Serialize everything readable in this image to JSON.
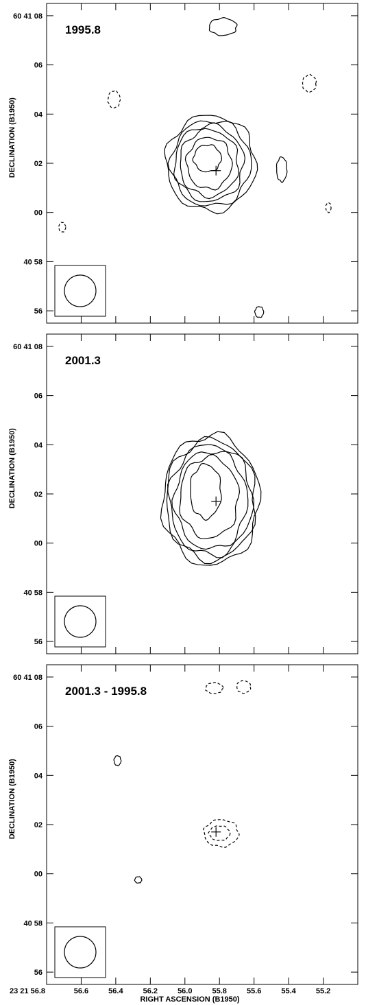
{
  "chart_data": [
    {
      "type": "contour",
      "epoch_label": "1995.8",
      "ylabel": "DECLINATION (B1950)",
      "y_ticks": [
        "60 41 08",
        "06",
        "04",
        "02",
        "00",
        "40 58",
        "56"
      ],
      "x_ticks": [],
      "xlabel": "",
      "cross_marker": {
        "ra": 55.82,
        "dec": 1.7
      },
      "beam": "circle (lower-left box)",
      "contours": [
        {
          "kind": "positive",
          "center_ra": 55.85,
          "center_dec": 2.0,
          "rx": 0.26,
          "ry": 1.95
        },
        {
          "kind": "positive",
          "center_ra": 55.85,
          "center_dec": 2.0,
          "rx": 0.23,
          "ry": 1.75
        },
        {
          "kind": "positive",
          "center_ra": 55.86,
          "center_dec": 2.0,
          "rx": 0.2,
          "ry": 1.55
        },
        {
          "kind": "positive",
          "center_ra": 55.86,
          "center_dec": 2.0,
          "rx": 0.17,
          "ry": 1.35
        },
        {
          "kind": "positive",
          "center_ra": 55.86,
          "center_dec": 2.0,
          "rx": 0.13,
          "ry": 1.05
        },
        {
          "kind": "positive",
          "center_ra": 55.87,
          "center_dec": 2.2,
          "rx": 0.08,
          "ry": 0.55
        },
        {
          "kind": "positive",
          "center_ra": 55.78,
          "center_dec": 7.55,
          "rx": 0.08,
          "ry": 0.35
        },
        {
          "kind": "positive",
          "center_ra": 55.44,
          "center_dec": 1.75,
          "rx": 0.03,
          "ry": 0.5
        },
        {
          "kind": "positive",
          "center_ra": 55.57,
          "center_dec": 55.95,
          "rx": 0.025,
          "ry": 0.22
        },
        {
          "kind": "negative",
          "center_ra": 56.41,
          "center_dec": 4.6,
          "rx": 0.035,
          "ry": 0.35
        },
        {
          "kind": "negative",
          "center_ra": 55.28,
          "center_dec": 5.25,
          "rx": 0.04,
          "ry": 0.35
        },
        {
          "kind": "negative",
          "center_ra": 55.17,
          "center_dec": 0.2,
          "rx": 0.015,
          "ry": 0.2
        },
        {
          "kind": "negative",
          "center_ra": 56.71,
          "center_dec": -0.6,
          "rx": 0.02,
          "ry": 0.2
        }
      ]
    },
    {
      "type": "contour",
      "epoch_label": "2001.3",
      "ylabel": "DECLINATION (B1950)",
      "y_ticks": [
        "60 41 08",
        "06",
        "04",
        "02",
        "00",
        "40 58",
        "56"
      ],
      "x_ticks": [],
      "xlabel": "",
      "cross_marker": {
        "ra": 55.82,
        "dec": 1.7
      },
      "beam": "circle (lower-left box)",
      "contours": [
        {
          "kind": "positive",
          "center_ra": 55.85,
          "center_dec": 1.75,
          "rx": 0.28,
          "ry": 2.65
        },
        {
          "kind": "positive",
          "center_ra": 55.85,
          "center_dec": 1.75,
          "rx": 0.26,
          "ry": 2.45
        },
        {
          "kind": "positive",
          "center_ra": 55.85,
          "center_dec": 1.75,
          "rx": 0.24,
          "ry": 2.25
        },
        {
          "kind": "positive",
          "center_ra": 55.85,
          "center_dec": 1.75,
          "rx": 0.21,
          "ry": 2.0
        },
        {
          "kind": "positive",
          "center_ra": 55.86,
          "center_dec": 1.85,
          "rx": 0.17,
          "ry": 1.65
        },
        {
          "kind": "positive",
          "center_ra": 55.88,
          "center_dec": 2.1,
          "rx": 0.09,
          "ry": 1.1
        }
      ]
    },
    {
      "type": "contour",
      "epoch_label": "2001.3 - 1995.8",
      "ylabel": "DECLINATION (B1950)",
      "y_ticks": [
        "60 41 08",
        "06",
        "04",
        "02",
        "00",
        "40 58",
        "56"
      ],
      "x_ticks": [
        "23 21 56.8",
        "56.6",
        "56.4",
        "56.2",
        "56.0",
        "55.8",
        "55.6",
        "55.4",
        "55.2"
      ],
      "xlabel": "RIGHT ASCENSION (B1950)",
      "cross_marker": {
        "ra": 55.82,
        "dec": 1.7
      },
      "beam": "circle (lower-left box)",
      "contours": [
        {
          "kind": "negative",
          "center_ra": 55.79,
          "center_dec": 1.65,
          "rx": 0.1,
          "ry": 0.55
        },
        {
          "kind": "negative",
          "center_ra": 55.8,
          "center_dec": 1.65,
          "rx": 0.06,
          "ry": 0.3
        },
        {
          "kind": "negative",
          "center_ra": 55.83,
          "center_dec": 7.55,
          "rx": 0.05,
          "ry": 0.22
        },
        {
          "kind": "negative",
          "center_ra": 55.66,
          "center_dec": 7.6,
          "rx": 0.04,
          "ry": 0.25
        },
        {
          "kind": "positive",
          "center_ra": 56.39,
          "center_dec": 4.6,
          "rx": 0.02,
          "ry": 0.2
        },
        {
          "kind": "positive",
          "center_ra": 56.27,
          "center_dec": -0.25,
          "rx": 0.02,
          "ry": 0.13
        }
      ]
    }
  ]
}
